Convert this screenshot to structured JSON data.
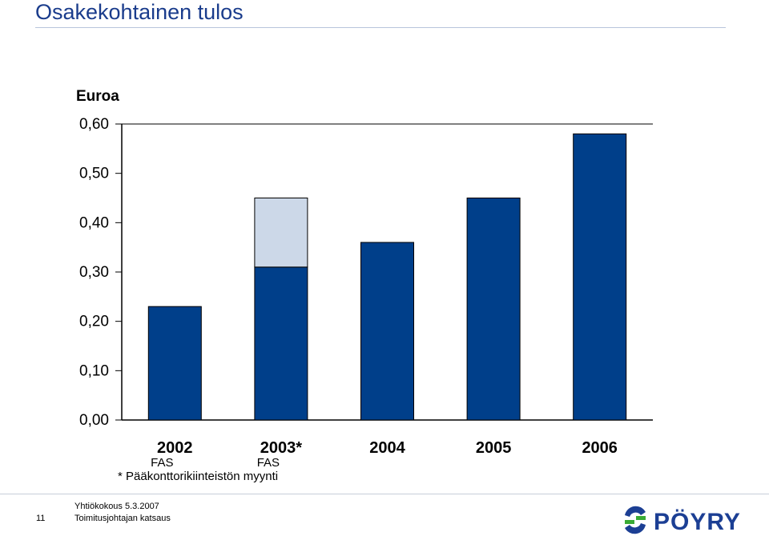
{
  "slide": {
    "title": "Osakekohtainen tulos",
    "footnote": "* Pääkonttorikiinteistön myynti",
    "page_number": "11",
    "footer_line1": "Yhtiökokous 5.3.2007",
    "footer_line2": "Toimitusjohtajan katsaus",
    "logo_text": "PÖYRY"
  },
  "colors": {
    "title": "#1a3c8c",
    "bar_primary": "#003f8a",
    "bar_extra": "#ccd8e8",
    "logo_blue": "#1c3f94",
    "logo_green": "#3aaa35"
  },
  "chart_data": {
    "type": "bar",
    "stacked": true,
    "ylabel": "Euroa",
    "ylim": [
      0,
      0.6
    ],
    "yticks": [
      "0,00",
      "0,10",
      "0,20",
      "0,30",
      "0,40",
      "0,50",
      "0,60"
    ],
    "categories": [
      "2002",
      "2003*",
      "2004",
      "2005",
      "2006"
    ],
    "category_sublabels": [
      "FAS",
      "FAS",
      "",
      "",
      ""
    ],
    "series": [
      {
        "values": [
          0.23,
          0.31,
          0.36,
          0.45,
          0.58
        ]
      },
      {
        "values": [
          0,
          0.14,
          0,
          0,
          0
        ]
      }
    ],
    "grid": false
  }
}
